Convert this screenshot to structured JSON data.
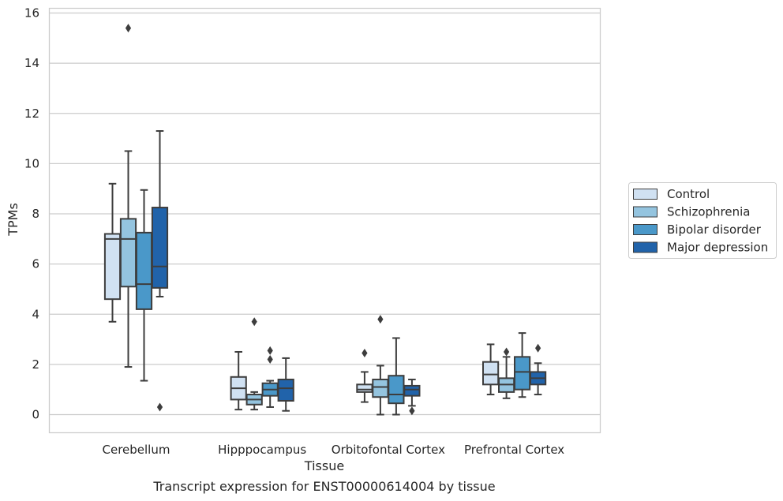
{
  "chart_data": {
    "type": "box",
    "title": "",
    "caption": "Transcript expression for ENST00000614004 by tissue",
    "xlabel": "Tissue",
    "ylabel": "TPMs",
    "ylim": [
      -0.7,
      16.2
    ],
    "yticks": [
      0,
      2,
      4,
      6,
      8,
      10,
      12,
      14,
      16
    ],
    "grid": "horizontal",
    "legend_position": "outside-right",
    "categories": [
      "Cerebellum",
      "Hipppocampus",
      "Orbitofontal Cortex",
      "Prefrontal Cortex"
    ],
    "series": [
      {
        "name": "Control",
        "color": "#d0e1f2",
        "boxes": [
          {
            "whislo": 3.7,
            "q1": 4.6,
            "med": 7.0,
            "q3": 7.2,
            "whishi": 9.2,
            "fliers": []
          },
          {
            "whislo": 0.2,
            "q1": 0.6,
            "med": 1.05,
            "q3": 1.5,
            "whishi": 2.5,
            "fliers": []
          },
          {
            "whislo": 0.5,
            "q1": 0.9,
            "med": 1.0,
            "q3": 1.2,
            "whishi": 1.7,
            "fliers": [
              2.45
            ]
          },
          {
            "whislo": 0.8,
            "q1": 1.2,
            "med": 1.6,
            "q3": 2.1,
            "whishi": 2.8,
            "fliers": []
          }
        ]
      },
      {
        "name": "Schizophrenia",
        "color": "#94c4df",
        "boxes": [
          {
            "whislo": 1.9,
            "q1": 5.1,
            "med": 7.0,
            "q3": 7.8,
            "whishi": 10.5,
            "fliers": [
              15.4
            ]
          },
          {
            "whislo": 0.2,
            "q1": 0.4,
            "med": 0.6,
            "q3": 0.8,
            "whishi": 0.9,
            "fliers": [
              3.7
            ]
          },
          {
            "whislo": 0.0,
            "q1": 0.7,
            "med": 1.1,
            "q3": 1.4,
            "whishi": 1.95,
            "fliers": [
              3.8
            ]
          },
          {
            "whislo": 0.65,
            "q1": 0.9,
            "med": 1.2,
            "q3": 1.45,
            "whishi": 2.3,
            "fliers": [
              2.5
            ]
          }
        ]
      },
      {
        "name": "Bipolar disorder",
        "color": "#4a98c9",
        "boxes": [
          {
            "whislo": 1.35,
            "q1": 4.2,
            "med": 5.2,
            "q3": 7.25,
            "whishi": 8.95,
            "fliers": []
          },
          {
            "whislo": 0.3,
            "q1": 0.75,
            "med": 1.0,
            "q3": 1.25,
            "whishi": 1.35,
            "fliers": [
              2.2,
              2.55
            ]
          },
          {
            "whislo": 0.0,
            "q1": 0.45,
            "med": 0.8,
            "q3": 1.55,
            "whishi": 3.05,
            "fliers": []
          },
          {
            "whislo": 0.7,
            "q1": 1.0,
            "med": 1.7,
            "q3": 2.3,
            "whishi": 3.25,
            "fliers": []
          }
        ]
      },
      {
        "name": "Major depression",
        "color": "#2163aa",
        "boxes": [
          {
            "whislo": 4.7,
            "q1": 5.05,
            "med": 5.9,
            "q3": 8.25,
            "whishi": 11.3,
            "fliers": [
              0.3
            ]
          },
          {
            "whislo": 0.15,
            "q1": 0.55,
            "med": 1.05,
            "q3": 1.4,
            "whishi": 2.25,
            "fliers": []
          },
          {
            "whislo": 0.35,
            "q1": 0.75,
            "med": 1.0,
            "q3": 1.15,
            "whishi": 1.4,
            "fliers": [
              0.15
            ]
          },
          {
            "whislo": 0.8,
            "q1": 1.2,
            "med": 1.45,
            "q3": 1.7,
            "whishi": 2.05,
            "fliers": [
              2.65
            ]
          }
        ]
      }
    ]
  }
}
